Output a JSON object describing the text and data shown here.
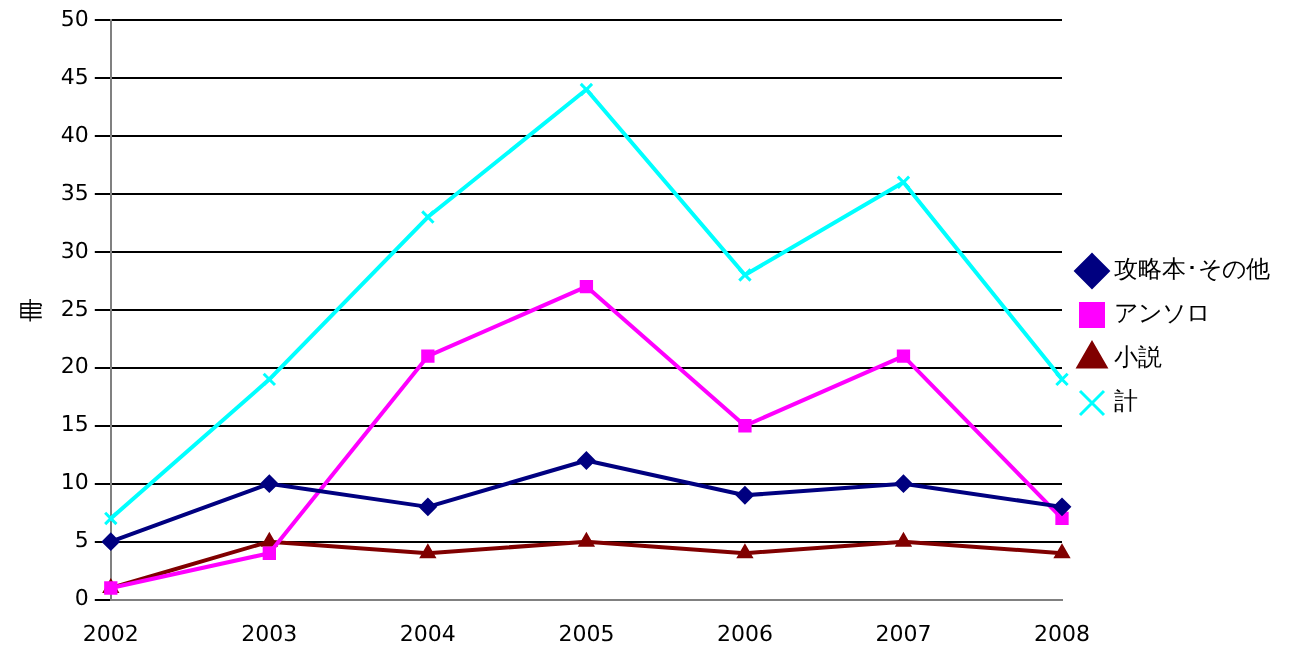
{
  "chart_data": {
    "type": "line",
    "ylabel": "冊",
    "categories": [
      "2002",
      "2003",
      "2004",
      "2005",
      "2006",
      "2007",
      "2008"
    ],
    "series": [
      {
        "name": "攻略本･その他",
        "color": "#000080",
        "marker": "diamond",
        "values": [
          5,
          10,
          8,
          12,
          9,
          10,
          8
        ]
      },
      {
        "name": "アンソロ",
        "color": "#ff00ff",
        "marker": "square",
        "values": [
          1,
          4,
          21,
          27,
          15,
          21,
          7
        ]
      },
      {
        "name": "小説",
        "color": "#800000",
        "marker": "triangle",
        "values": [
          1,
          5,
          4,
          5,
          4,
          5,
          4
        ]
      },
      {
        "name": "計",
        "color": "#00ffff",
        "marker": "cross",
        "values": [
          7,
          19,
          33,
          44,
          28,
          36,
          19
        ]
      }
    ],
    "ylim": [
      0,
      50
    ],
    "yticks": [
      0,
      5,
      10,
      15,
      20,
      25,
      30,
      35,
      40,
      45,
      50
    ],
    "grid": "y",
    "legend": "right"
  }
}
